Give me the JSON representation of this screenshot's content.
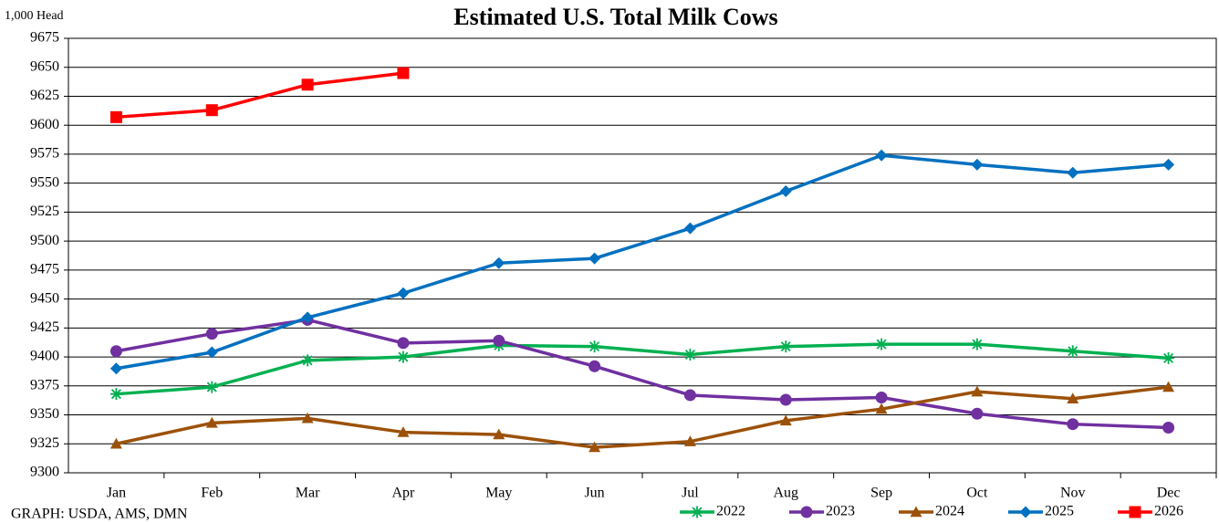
{
  "chart_data": {
    "type": "line",
    "title": "Estimated U.S. Total Milk Cows",
    "y_label": "1,000 Head",
    "source": "GRAPH: USDA, AMS, DMN",
    "categories": [
      "Jan",
      "Feb",
      "Mar",
      "Apr",
      "May",
      "Jun",
      "Jul",
      "Aug",
      "Sep",
      "Oct",
      "Nov",
      "Dec"
    ],
    "series": [
      {
        "name": "2022",
        "color": "#00b050",
        "marker": "asterisk",
        "values": [
          9368,
          9374,
          9397,
          9400,
          9410,
          9409,
          9402,
          9409,
          9411,
          9411,
          9405,
          9399
        ]
      },
      {
        "name": "2023",
        "color": "#7030a0",
        "marker": "circle",
        "values": [
          9405,
          9420,
          9432,
          9412,
          9414,
          9392,
          9367,
          9363,
          9365,
          9351,
          9342,
          9339
        ]
      },
      {
        "name": "2024",
        "color": "#9c5108",
        "marker": "triangle",
        "values": [
          9325,
          9343,
          9347,
          9335,
          9333,
          9322,
          9327,
          9345,
          9355,
          9370,
          9364,
          9374
        ]
      },
      {
        "name": "2025",
        "color": "#0070c0",
        "marker": "diamond",
        "values": [
          9390,
          9404,
          9434,
          9455,
          9481,
          9485,
          9511,
          9543,
          9574,
          9566,
          9559,
          9566
        ]
      },
      {
        "name": "2026",
        "color": "#ff0000",
        "marker": "square",
        "values": [
          9607,
          9613,
          9635,
          9645,
          null,
          null,
          null,
          null,
          null,
          null,
          null,
          null
        ]
      }
    ],
    "ylim": [
      9300,
      9675
    ],
    "yticks": [
      9300,
      9325,
      9350,
      9375,
      9400,
      9425,
      9450,
      9475,
      9500,
      9525,
      9550,
      9575,
      9600,
      9625,
      9650,
      9675
    ],
    "grid": true,
    "legend": "bottom-right"
  }
}
